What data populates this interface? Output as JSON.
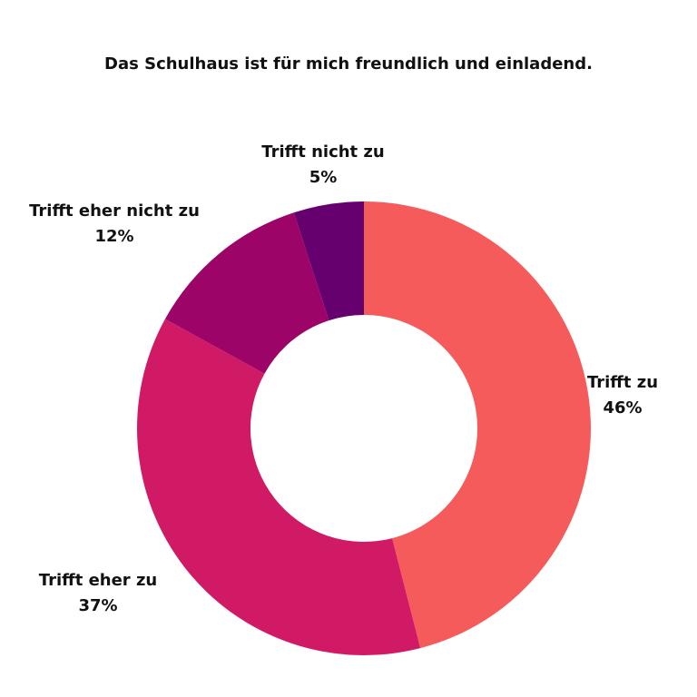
{
  "chart_data": {
    "type": "pie",
    "title": "Das Schulhaus ist für mich freundlich und einladend.",
    "start_angle_deg": 0,
    "direction": "clockwise",
    "slices": [
      {
        "label": "Trifft zu",
        "value": 46,
        "value_label": "46%",
        "color": "#F55B5B"
      },
      {
        "label": "Trifft eher zu",
        "value": 37,
        "value_label": "37%",
        "color": "#D11A66"
      },
      {
        "label": "Trifft eher nicht zu",
        "value": 12,
        "value_label": "12%",
        "color": "#9C0467"
      },
      {
        "label": "Trifft nicht zu",
        "value": 5,
        "value_label": "5%",
        "color": "#66006E"
      }
    ]
  }
}
